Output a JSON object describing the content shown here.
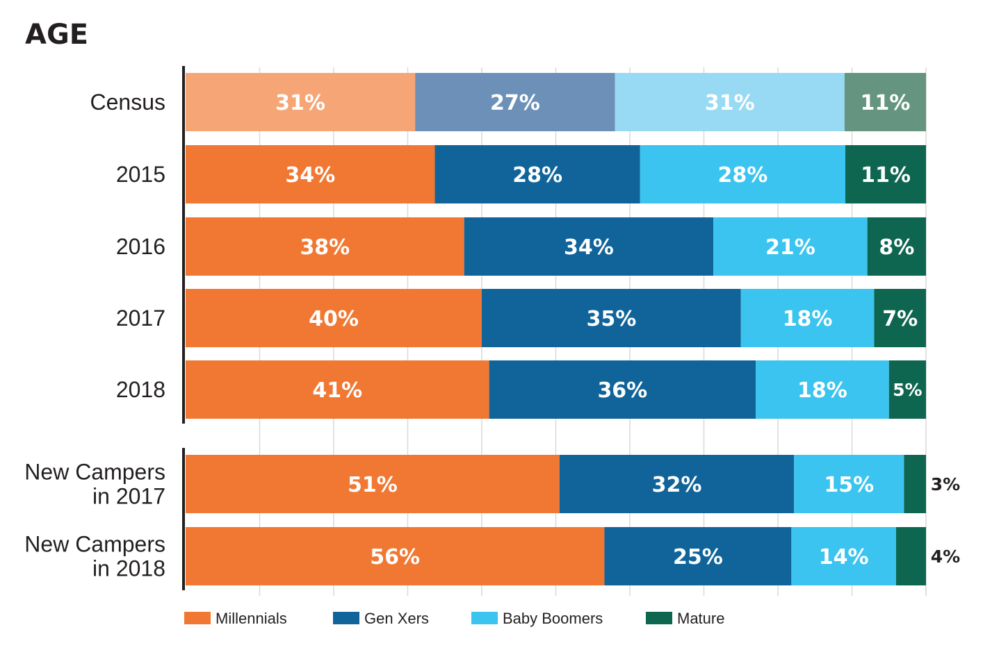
{
  "chart_data": {
    "type": "bar",
    "orientation": "horizontal",
    "stacked": true,
    "title": "AGE",
    "xlabel": "",
    "ylabel": "",
    "xlim": [
      0,
      100
    ],
    "grid": true,
    "legend_position": "bottom",
    "categories": [
      "Census",
      "2015",
      "2016",
      "2017",
      "2018",
      "New Campers in 2017",
      "New Campers in 2018"
    ],
    "category_label_lines": [
      [
        "Census"
      ],
      [
        "2015"
      ],
      [
        "2016"
      ],
      [
        "2017"
      ],
      [
        "2018"
      ],
      [
        "New Campers",
        "in 2017"
      ],
      [
        "New Campers",
        "in 2018"
      ]
    ],
    "groups": [
      [
        0,
        1,
        2,
        3,
        4
      ],
      [
        5,
        6
      ]
    ],
    "series": [
      {
        "name": "Millennials",
        "color": "#f07832",
        "census_color": "#f6a676",
        "values": [
          31,
          34,
          38,
          40,
          41,
          51,
          56
        ],
        "labels": [
          "31%",
          "34%",
          "38%",
          "40%",
          "41%",
          "51%",
          "56%"
        ]
      },
      {
        "name": "Gen Xers",
        "color": "#106499",
        "census_color": "#6c90b8",
        "values": [
          27,
          28,
          34,
          35,
          36,
          32,
          25
        ],
        "labels": [
          "27%",
          "28%",
          "34%",
          "35%",
          "36%",
          "32%",
          "25%"
        ]
      },
      {
        "name": "Baby Boomers",
        "color": "#3bc4ef",
        "census_color": "#98daf4",
        "values": [
          31,
          28,
          21,
          18,
          18,
          15,
          14
        ],
        "labels": [
          "31%",
          "28%",
          "21%",
          "18%",
          "18%",
          "15%",
          "14%"
        ]
      },
      {
        "name": "Mature",
        "color": "#0e6650",
        "census_color": "#659580",
        "values": [
          11,
          11,
          8,
          7,
          5,
          3,
          4
        ],
        "labels": [
          "11%",
          "11%",
          "8%",
          "7%",
          "5%",
          "3%",
          "4%"
        ]
      }
    ]
  }
}
